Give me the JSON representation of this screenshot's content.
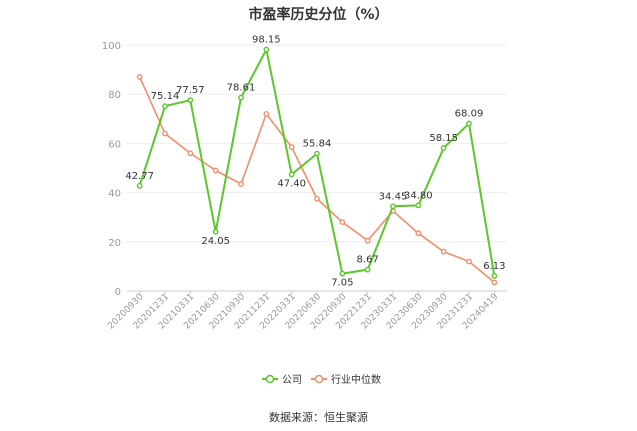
{
  "chart_data": {
    "type": "line",
    "title": "市盈率历史分位（%）",
    "ylim": [
      0,
      100
    ],
    "yticks": [
      0,
      20,
      40,
      60,
      80,
      100
    ],
    "categories": [
      "20200930",
      "20201231",
      "20210331",
      "20210630",
      "20210930",
      "20211231",
      "20220331",
      "20220630",
      "20220930",
      "20221231",
      "20230331",
      "20230630",
      "20230930",
      "20231231",
      "20240419"
    ],
    "series": [
      {
        "name": "公司",
        "color": "#5bc72b",
        "values": [
          42.77,
          75.14,
          77.57,
          24.05,
          78.61,
          98.15,
          47.4,
          55.84,
          7.05,
          8.67,
          34.45,
          34.8,
          58.15,
          68.09,
          6.13
        ],
        "labels": [
          "42.77",
          "75.14",
          "77.57",
          "24.05",
          "78.61",
          "98.15",
          "47.40",
          "55.84",
          "7.05",
          "8.67",
          "34.45",
          "34.80",
          "58.15",
          "68.09",
          "6.13"
        ]
      },
      {
        "name": "行业中位数",
        "color": "#f28e6a",
        "values": [
          87,
          64,
          56,
          49,
          43.5,
          72,
          58.5,
          37.5,
          28,
          20.5,
          32.5,
          23.5,
          16,
          12,
          3.5
        ]
      }
    ],
    "grid": true,
    "legend_position": "bottom"
  },
  "source_text": "数据来源：恒生聚源"
}
